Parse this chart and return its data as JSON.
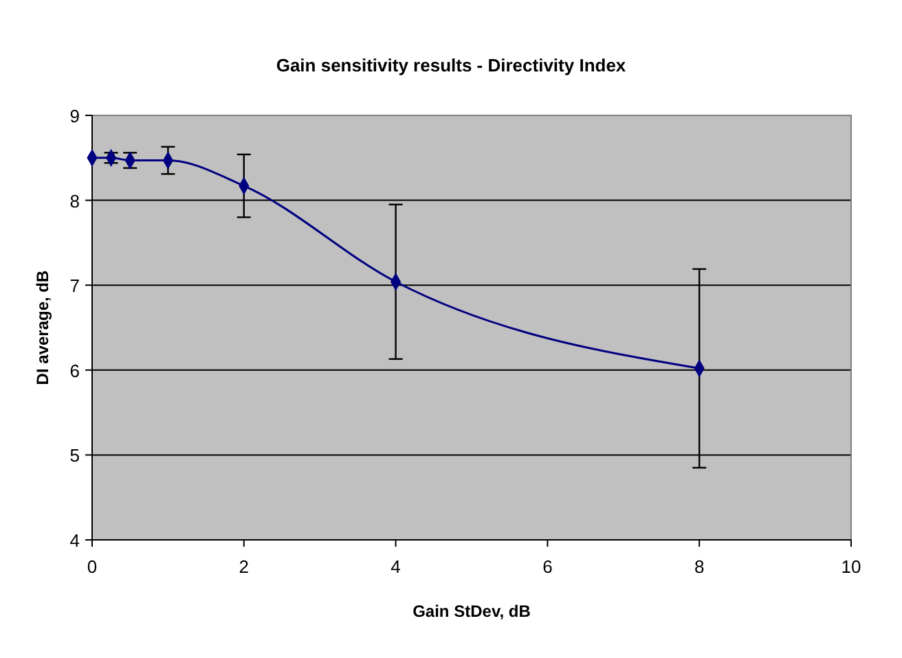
{
  "chart_data": {
    "type": "line",
    "title": "Gain sensitivity results - Directivity Index",
    "xlabel": "Gain StDev, dB",
    "ylabel": "DI average, dB",
    "x": [
      0,
      0.25,
      0.5,
      1,
      2,
      4,
      8
    ],
    "series": [
      {
        "color": "#000080",
        "values": [
          8.5,
          8.5,
          8.47,
          8.47,
          8.17,
          7.04,
          6.02
        ],
        "errors": [
          null,
          0.06,
          0.09,
          0.16,
          0.37,
          0.91,
          1.17
        ]
      }
    ],
    "xlim": [
      0,
      10
    ],
    "xticks": [
      0,
      2,
      4,
      6,
      8,
      10
    ],
    "ylim": [
      4,
      9
    ],
    "yticks": [
      4,
      5,
      6,
      7,
      8,
      9
    ],
    "grid": "y",
    "marker": "diamond",
    "line_style": "solid"
  }
}
